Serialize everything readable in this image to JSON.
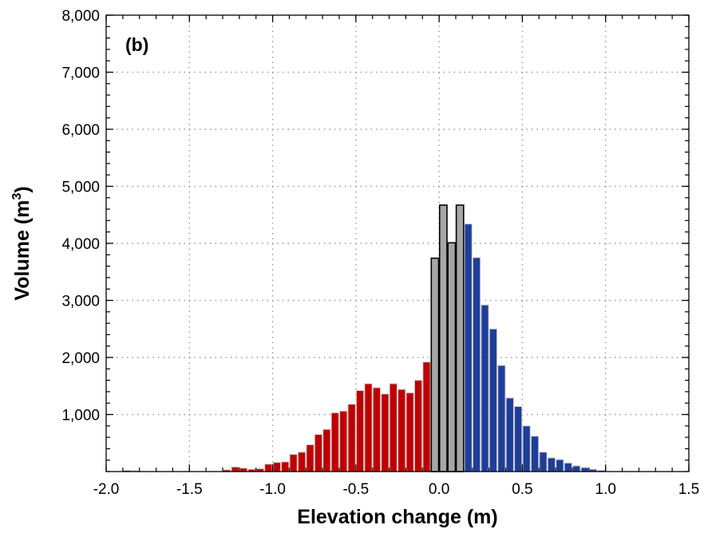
{
  "chart_data": {
    "type": "bar",
    "panel_label": "(b)",
    "xlabel": "Elevation change (m)",
    "ylabel_main": "Volume  (m",
    "ylabel_sup": "3",
    "ylabel_end": ")",
    "xlim": [
      -2.0,
      1.5
    ],
    "ylim": [
      0,
      8000
    ],
    "bin_width": 0.05,
    "x_ticks": [
      -2.0,
      -1.5,
      -1.0,
      -0.5,
      0.0,
      0.5,
      1.0,
      1.5
    ],
    "x_tick_labels": [
      "-2.0",
      "-1.5",
      "-1.0",
      "-0.5",
      "0.0",
      "0.5",
      "1.0",
      "1.5"
    ],
    "y_ticks": [
      1000,
      2000,
      3000,
      4000,
      5000,
      6000,
      7000,
      8000
    ],
    "y_tick_labels": [
      "1,000",
      "2,000",
      "3,000",
      "4,000",
      "5,000",
      "6,000",
      "7,000",
      "8,000"
    ],
    "grid": true,
    "colors": {
      "negative": "#c00000",
      "neutral": "#a6a6a6",
      "positive": "#1f3d99",
      "neutral_outline": "#000000",
      "bar_outline": "#cccccc"
    },
    "bars": [
      {
        "x": -1.875,
        "value": 20,
        "class": "negative"
      },
      {
        "x": -1.825,
        "value": 15,
        "class": "negative"
      },
      {
        "x": -1.275,
        "value": 30,
        "class": "negative"
      },
      {
        "x": -1.225,
        "value": 80,
        "class": "negative"
      },
      {
        "x": -1.175,
        "value": 60,
        "class": "negative"
      },
      {
        "x": -1.125,
        "value": 40,
        "class": "negative"
      },
      {
        "x": -1.075,
        "value": 50,
        "class": "negative"
      },
      {
        "x": -1.025,
        "value": 130,
        "class": "negative"
      },
      {
        "x": -0.975,
        "value": 160,
        "class": "negative"
      },
      {
        "x": -0.925,
        "value": 170,
        "class": "negative"
      },
      {
        "x": -0.875,
        "value": 300,
        "class": "negative"
      },
      {
        "x": -0.825,
        "value": 340,
        "class": "negative"
      },
      {
        "x": -0.775,
        "value": 470,
        "class": "negative"
      },
      {
        "x": -0.725,
        "value": 650,
        "class": "negative"
      },
      {
        "x": -0.675,
        "value": 740,
        "class": "negative"
      },
      {
        "x": -0.625,
        "value": 1030,
        "class": "negative"
      },
      {
        "x": -0.575,
        "value": 1060,
        "class": "negative"
      },
      {
        "x": -0.525,
        "value": 1180,
        "class": "negative"
      },
      {
        "x": -0.475,
        "value": 1420,
        "class": "negative"
      },
      {
        "x": -0.425,
        "value": 1540,
        "class": "negative"
      },
      {
        "x": -0.375,
        "value": 1470,
        "class": "negative"
      },
      {
        "x": -0.325,
        "value": 1360,
        "class": "negative"
      },
      {
        "x": -0.275,
        "value": 1540,
        "class": "negative"
      },
      {
        "x": -0.225,
        "value": 1440,
        "class": "negative"
      },
      {
        "x": -0.175,
        "value": 1380,
        "class": "negative"
      },
      {
        "x": -0.125,
        "value": 1600,
        "class": "negative"
      },
      {
        "x": -0.075,
        "value": 1920,
        "class": "negative"
      },
      {
        "x": -0.025,
        "value": 3740,
        "class": "neutral"
      },
      {
        "x": 0.025,
        "value": 4670,
        "class": "neutral"
      },
      {
        "x": 0.075,
        "value": 4010,
        "class": "neutral"
      },
      {
        "x": 0.125,
        "value": 4670,
        "class": "neutral"
      },
      {
        "x": 0.175,
        "value": 4340,
        "class": "positive"
      },
      {
        "x": 0.225,
        "value": 3750,
        "class": "positive"
      },
      {
        "x": 0.275,
        "value": 2920,
        "class": "positive"
      },
      {
        "x": 0.325,
        "value": 2500,
        "class": "positive"
      },
      {
        "x": 0.375,
        "value": 1860,
        "class": "positive"
      },
      {
        "x": 0.425,
        "value": 1290,
        "class": "positive"
      },
      {
        "x": 0.475,
        "value": 1140,
        "class": "positive"
      },
      {
        "x": 0.525,
        "value": 800,
        "class": "positive"
      },
      {
        "x": 0.575,
        "value": 620,
        "class": "positive"
      },
      {
        "x": 0.625,
        "value": 340,
        "class": "positive"
      },
      {
        "x": 0.675,
        "value": 240,
        "class": "positive"
      },
      {
        "x": 0.725,
        "value": 210,
        "class": "positive"
      },
      {
        "x": 0.775,
        "value": 150,
        "class": "positive"
      },
      {
        "x": 0.825,
        "value": 100,
        "class": "positive"
      },
      {
        "x": 0.875,
        "value": 70,
        "class": "positive"
      },
      {
        "x": 0.925,
        "value": 40,
        "class": "positive"
      },
      {
        "x": 0.975,
        "value": 20,
        "class": "positive"
      }
    ]
  }
}
